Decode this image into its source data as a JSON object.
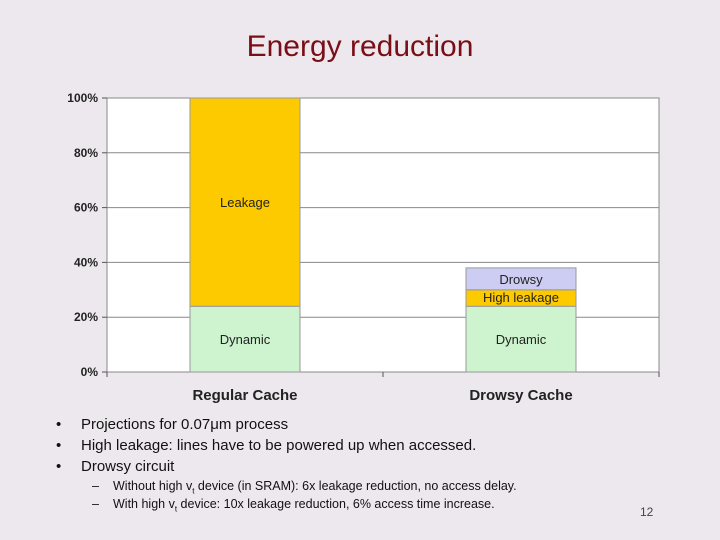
{
  "title": "Energy reduction",
  "chart_data": {
    "type": "stacked-bar",
    "title": "",
    "xlabel": "",
    "ylabel": "",
    "ylim": [
      0,
      100
    ],
    "yticks": [
      "0%",
      "20%",
      "40%",
      "60%",
      "80%",
      "100%"
    ],
    "categories": [
      "Regular Cache",
      "Drowsy Cache"
    ],
    "bars": [
      {
        "category": "Regular Cache",
        "segments": [
          {
            "label": "Dynamic",
            "value": 24,
            "color": "#cdf4cf"
          },
          {
            "label": "Leakage",
            "value": 76,
            "color": "#fdca00"
          }
        ]
      },
      {
        "category": "Drowsy Cache",
        "segments": [
          {
            "label": "Dynamic",
            "value": 24,
            "color": "#cdf4cf"
          },
          {
            "label": "High leakage",
            "value": 6,
            "color": "#fdca00"
          },
          {
            "label": "Drowsy",
            "value": 8,
            "color": "#cdcdf4"
          }
        ]
      }
    ]
  },
  "bullets": [
    "Projections for 0.07μm process",
    "High leakage: lines have to be powered up when accessed.",
    "Drowsy circuit"
  ],
  "sub_bullets": [
    {
      "pre": "Without high v",
      "sub": "t",
      "post": " device (in SRAM): 6x leakage  reduction, no access delay."
    },
    {
      "pre": "With high v",
      "sub": "t",
      "post": " device: 10x leakage reduction, 6% access time increase."
    }
  ],
  "page_number": "12"
}
